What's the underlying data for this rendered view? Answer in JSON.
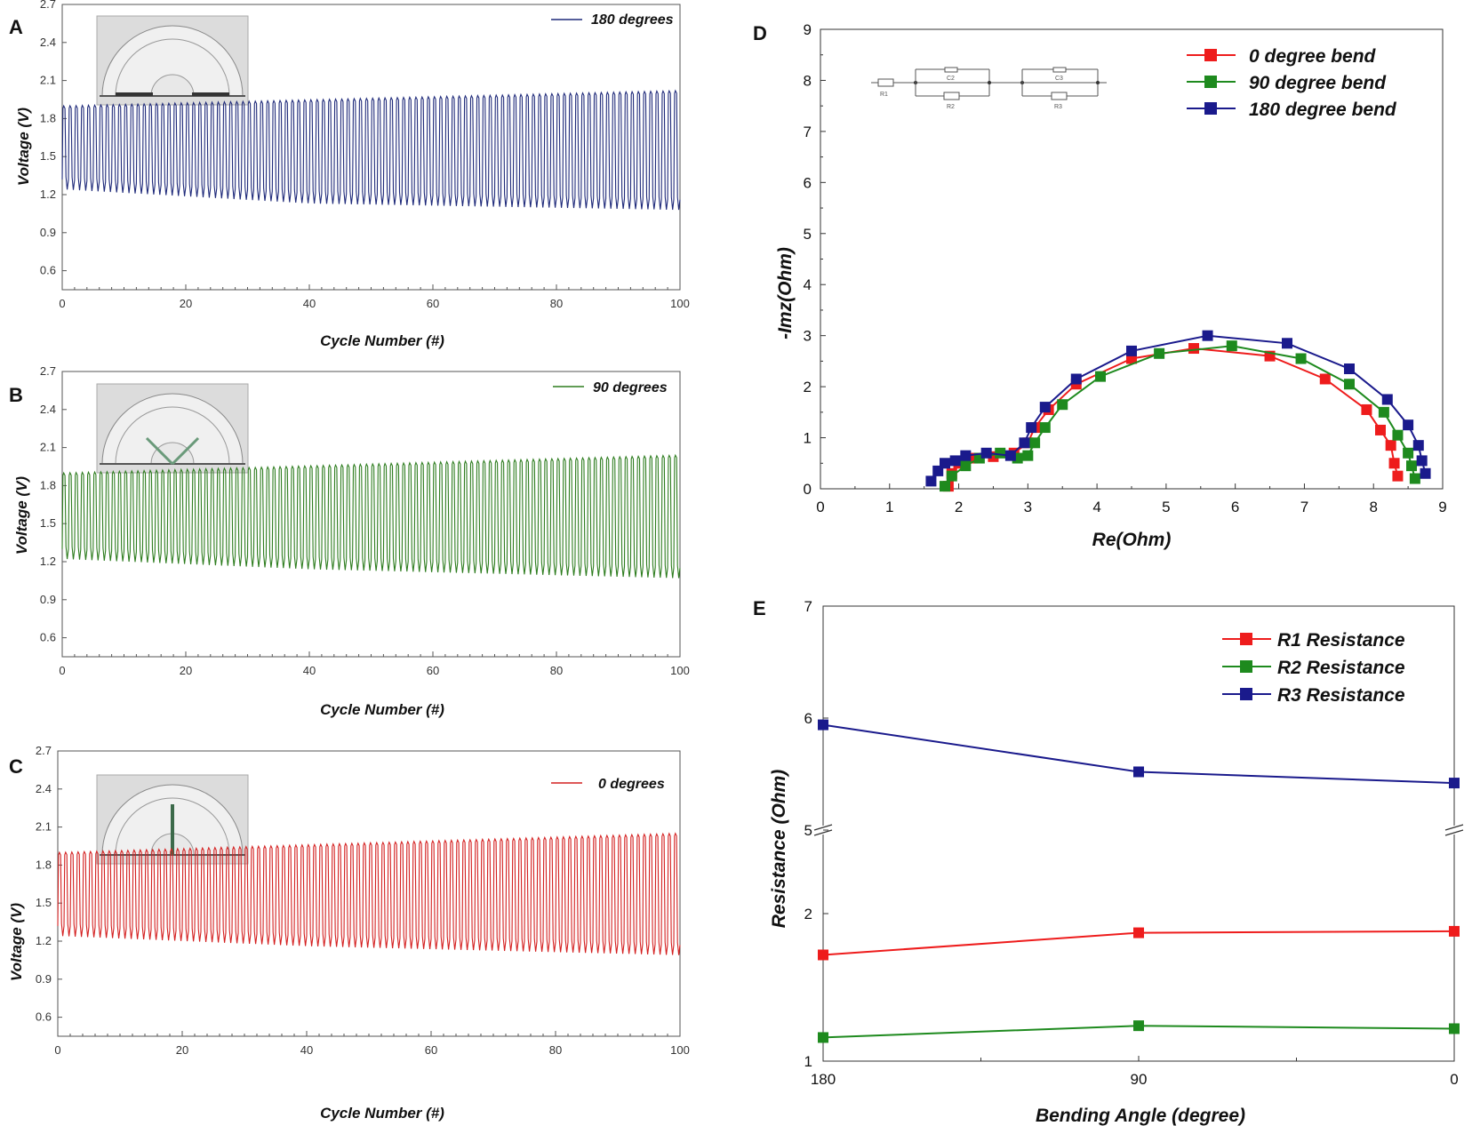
{
  "chart_data": [
    {
      "panel": "A",
      "type": "line",
      "xlabel": "Cycle Number (#)",
      "ylabel": "Voltage (V)",
      "xlim": [
        0,
        100
      ],
      "ylim": [
        0.45,
        2.7
      ],
      "xticks": [
        0,
        20,
        40,
        60,
        80,
        100
      ],
      "yticks": [
        "0.6",
        "0.9",
        "1.2",
        "1.5",
        "1.8",
        "2.1",
        "2.4",
        "2.7"
      ],
      "series": [
        {
          "name": "180 degrees",
          "color": "#1f2a7a",
          "cycles": 100,
          "peak_start": 1.9,
          "peak_end": 2.02,
          "trough_start": 1.24,
          "trough_mid": 1.13,
          "trough_end": 1.08
        }
      ]
    },
    {
      "panel": "B",
      "type": "line",
      "xlabel": "Cycle Number (#)",
      "ylabel": "Voltage (V)",
      "xlim": [
        0,
        100
      ],
      "ylim": [
        0.45,
        2.7
      ],
      "xticks": [
        0,
        20,
        40,
        60,
        80,
        100
      ],
      "yticks": [
        "0.6",
        "0.9",
        "1.2",
        "1.5",
        "1.8",
        "2.1",
        "2.4",
        "2.7"
      ],
      "series": [
        {
          "name": "90 degrees",
          "color": "#2e7d1f",
          "cycles": 100,
          "peak_start": 1.9,
          "peak_end": 2.04,
          "trough_start": 1.22,
          "trough_mid": 1.14,
          "trough_end": 1.07
        }
      ]
    },
    {
      "panel": "C",
      "type": "line",
      "xlabel": "Cycle Number (#)",
      "ylabel": "Voltage (V)",
      "xlim": [
        0,
        100
      ],
      "ylim": [
        0.45,
        2.7
      ],
      "xticks": [
        0,
        20,
        40,
        60,
        80,
        100
      ],
      "yticks": [
        "0.6",
        "0.9",
        "1.2",
        "1.5",
        "1.8",
        "2.1",
        "2.4",
        "2.7"
      ],
      "series": [
        {
          "name": "0 degrees",
          "color": "#d42020",
          "cycles": 100,
          "peak_start": 1.9,
          "peak_end": 2.05,
          "trough_start": 1.24,
          "trough_mid": 1.16,
          "trough_end": 1.09
        }
      ]
    },
    {
      "panel": "D",
      "type": "scatter",
      "xlabel": "Re(Ohm)",
      "ylabel": "-Imz(Ohm)",
      "xlim": [
        0,
        9
      ],
      "ylim": [
        0,
        9
      ],
      "xticks": [
        0,
        1,
        2,
        3,
        4,
        5,
        6,
        7,
        8,
        9
      ],
      "yticks": [
        0,
        1,
        2,
        3,
        4,
        5,
        6,
        7,
        8,
        9
      ],
      "circuit_labels": [
        "R1",
        "C2",
        "R2",
        "C3",
        "R3"
      ],
      "series": [
        {
          "name": "0 degree bend",
          "color": "#ee1c1c",
          "x": [
            1.85,
            1.9,
            2.0,
            2.2,
            2.5,
            2.8,
            3.0,
            3.1,
            3.3,
            3.7,
            4.5,
            5.4,
            6.5,
            7.3,
            7.9,
            8.1,
            8.25,
            8.3,
            8.35
          ],
          "y": [
            0.05,
            0.3,
            0.5,
            0.6,
            0.63,
            0.7,
            0.9,
            1.2,
            1.55,
            2.05,
            2.55,
            2.75,
            2.6,
            2.15,
            1.55,
            1.15,
            0.85,
            0.5,
            0.25
          ]
        },
        {
          "name": "90 degree bend",
          "color": "#1e8a1e",
          "x": [
            1.8,
            1.9,
            2.1,
            2.3,
            2.6,
            2.85,
            3.0,
            3.1,
            3.25,
            3.5,
            4.05,
            4.9,
            5.95,
            6.95,
            7.65,
            8.15,
            8.35,
            8.5,
            8.55,
            8.6
          ],
          "y": [
            0.05,
            0.25,
            0.45,
            0.6,
            0.7,
            0.6,
            0.65,
            0.9,
            1.2,
            1.65,
            2.2,
            2.65,
            2.8,
            2.55,
            2.05,
            1.5,
            1.05,
            0.7,
            0.45,
            0.2
          ]
        },
        {
          "name": "180 degree bend",
          "color": "#1a1a8c",
          "x": [
            1.6,
            1.7,
            1.8,
            1.95,
            2.1,
            2.4,
            2.75,
            2.95,
            3.05,
            3.25,
            3.7,
            4.5,
            5.6,
            6.75,
            7.65,
            8.2,
            8.5,
            8.65,
            8.7,
            8.75
          ],
          "y": [
            0.15,
            0.35,
            0.5,
            0.55,
            0.65,
            0.7,
            0.65,
            0.9,
            1.2,
            1.6,
            2.15,
            2.7,
            3.0,
            2.85,
            2.35,
            1.75,
            1.25,
            0.85,
            0.55,
            0.3
          ]
        }
      ]
    },
    {
      "panel": "E",
      "type": "line",
      "xlabel": "Bending Angle (degree)",
      "ylabel": "Resistance (Ohm)",
      "categories": [
        "180",
        "90",
        "0"
      ],
      "yticks_upper": [
        5,
        6,
        7
      ],
      "yticks_lower": [
        1,
        2
      ],
      "axis_break": "between 2 and 5",
      "series": [
        {
          "name": "R1 Resistance",
          "color": "#ee1c1c",
          "values": [
            1.72,
            1.87,
            1.88
          ]
        },
        {
          "name": "R2 Resistance",
          "color": "#1e8a1e",
          "values": [
            1.16,
            1.24,
            1.22
          ]
        },
        {
          "name": "R3 Resistance",
          "color": "#1a1a8c",
          "values": [
            5.94,
            5.52,
            5.42
          ]
        }
      ]
    }
  ]
}
